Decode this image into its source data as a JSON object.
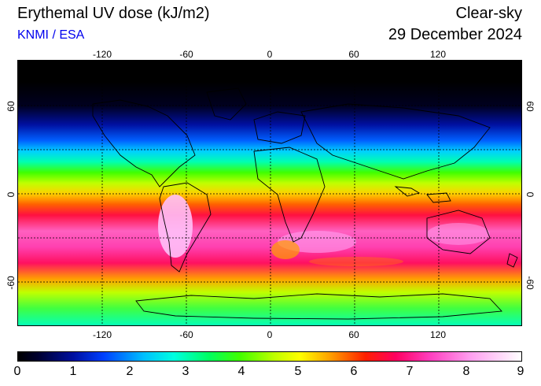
{
  "header": {
    "title": "Erythemal UV dose (kJ/m2)",
    "credit": "KNMI / ESA",
    "mode": "Clear-sky",
    "date": "29 December 2024"
  },
  "map": {
    "lon_ticks": [
      "-120",
      "-60",
      "0",
      "60",
      "120"
    ],
    "lat_ticks_left": [
      "60",
      "0",
      "-60"
    ],
    "lat_ticks_right": [
      "60",
      "0",
      "-60"
    ]
  },
  "colorbar": {
    "labels": [
      "0",
      "1",
      "2",
      "3",
      "4",
      "5",
      "6",
      "7",
      "8",
      "9"
    ],
    "min": 0,
    "max": 9
  },
  "colors": {
    "high_uv": "#ffa0f0",
    "mid_uv": "#ff0060",
    "low_uv": "#00ffe0",
    "night": "#000000"
  }
}
